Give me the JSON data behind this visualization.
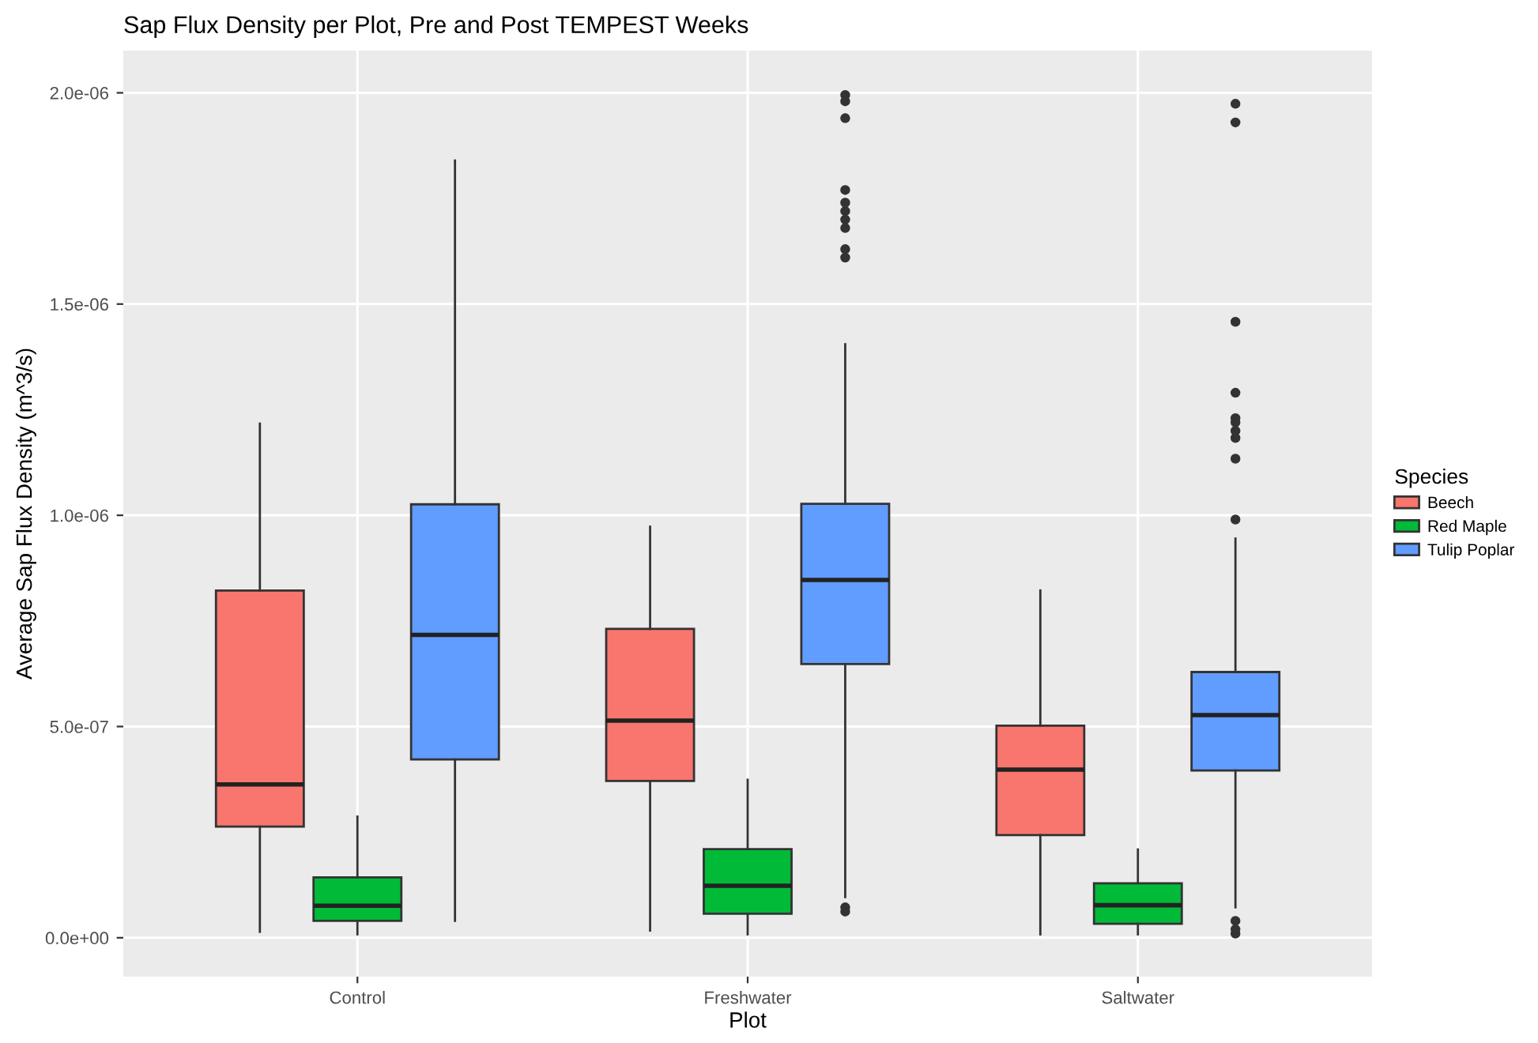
{
  "chart_data": {
    "type": "box",
    "title": "Sap Flux Density per Plot, Pre and Post TEMPEST Weeks",
    "xlabel": "Plot",
    "ylabel": "Average Sap Flux Density (m^3/s)",
    "legend_title": "Species",
    "categories": [
      "Control",
      "Freshwater",
      "Saltwater"
    ],
    "ylim": [
      -9.2e-08,
      2.1e-06
    ],
    "yticks": [
      {
        "value": 0,
        "label": "0.0e+00"
      },
      {
        "value": 5e-07,
        "label": "5.0e-07"
      },
      {
        "value": 1e-06,
        "label": "1.0e-06"
      },
      {
        "value": 1.5e-06,
        "label": "1.5e-06"
      },
      {
        "value": 2e-06,
        "label": "2.0e-06"
      }
    ],
    "grid": true,
    "legend": "right",
    "series": [
      {
        "name": "Beech",
        "color": "#f8766d",
        "boxes": [
          {
            "low": 1.4e-08,
            "q1": 2.63e-07,
            "median": 3.63e-07,
            "q3": 8.22e-07,
            "high": 1.217e-06
          },
          {
            "low": 1.7e-08,
            "q1": 3.71e-07,
            "median": 5.14e-07,
            "q3": 7.31e-07,
            "high": 9.73e-07
          },
          {
            "low": 8e-09,
            "q1": 2.43e-07,
            "median": 3.98e-07,
            "q3": 5.02e-07,
            "high": 8.22e-07
          }
        ]
      },
      {
        "name": "Red Maple",
        "color": "#00ba38",
        "boxes": [
          {
            "low": 8e-09,
            "q1": 4e-08,
            "median": 7.6e-08,
            "q3": 1.43e-07,
            "high": 2.87e-07
          },
          {
            "low": 8e-09,
            "q1": 5.7e-08,
            "median": 1.23e-07,
            "q3": 2.1e-07,
            "high": 3.74e-07
          },
          {
            "low": 8e-09,
            "q1": 3.3e-08,
            "median": 7.7e-08,
            "q3": 1.29e-07,
            "high": 2.09e-07
          }
        ]
      },
      {
        "name": "Tulip Poplar",
        "color": "#619cff",
        "boxes": [
          {
            "low": 4e-08,
            "q1": 4.22e-07,
            "median": 7.17e-07,
            "q3": 1.026e-06,
            "high": 1.84e-06
          },
          {
            "low": 9.6e-08,
            "q1": 6.48e-07,
            "median": 8.47e-07,
            "q3": 1.027e-06,
            "high": 1.405e-06,
            "outliers": [
              6.2e-08,
              7.2e-08,
              1.61e-06,
              1.63e-06,
              1.68e-06,
              1.7e-06,
              1.72e-06,
              1.74e-06,
              1.77e-06,
              1.94e-06,
              1.98e-06,
              1.995e-06
            ]
          },
          {
            "low": 7.2e-08,
            "q1": 3.96e-07,
            "median": 5.27e-07,
            "q3": 6.29e-07,
            "high": 9.45e-07,
            "outliers": [
              1e-08,
              2e-08,
              4e-08,
              9.9e-07,
              1.134e-06,
              1.183e-06,
              1.2e-06,
              1.22e-06,
              1.23e-06,
              1.29e-06,
              1.458e-06,
              1.93e-06,
              1.974e-06
            ]
          }
        ]
      }
    ]
  }
}
